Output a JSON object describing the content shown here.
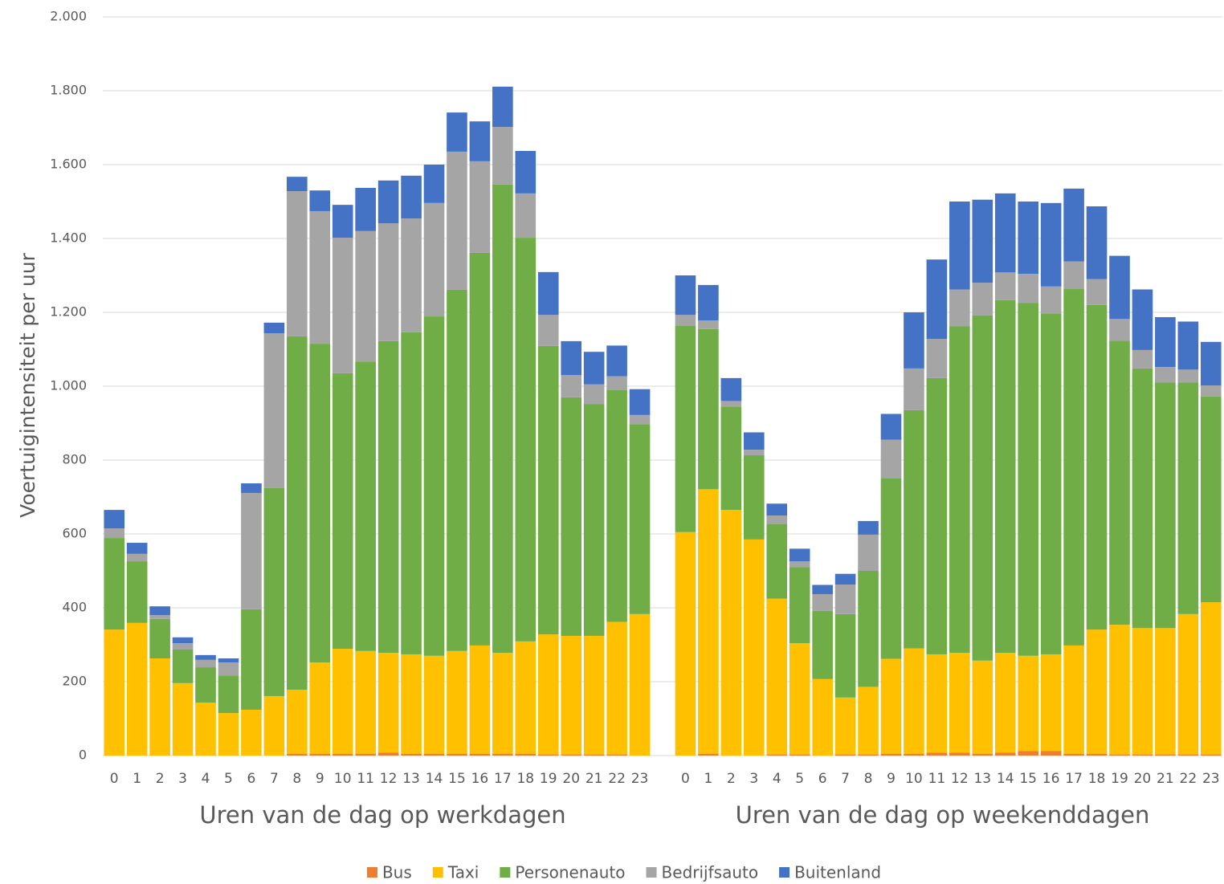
{
  "chart_data": {
    "type": "stacked_bar",
    "ylabel": "Voertuigintensiteit per uur",
    "xlabels": [
      "Uren van de dag op werkdagen",
      "Uren van de dag op weekenddagen"
    ],
    "categories": [
      "0",
      "1",
      "2",
      "3",
      "4",
      "5",
      "6",
      "7",
      "8",
      "9",
      "10",
      "11",
      "12",
      "13",
      "14",
      "15",
      "16",
      "17",
      "18",
      "19",
      "20",
      "21",
      "22",
      "23",
      null,
      "0",
      "1",
      "2",
      "3",
      "4",
      "5",
      "6",
      "7",
      "8",
      "9",
      "10",
      "11",
      "12",
      "13",
      "14",
      "15",
      "16",
      "17",
      "18",
      "19",
      "20",
      "21",
      "22",
      "23"
    ],
    "series": [
      {
        "name": "Bus",
        "color": "#ed7d31",
        "values": [
          0,
          0,
          0,
          0,
          0,
          0,
          0,
          0,
          5,
          5,
          5,
          5,
          8,
          5,
          5,
          5,
          5,
          5,
          5,
          3,
          3,
          3,
          3,
          0,
          null,
          0,
          5,
          0,
          0,
          3,
          3,
          0,
          3,
          3,
          5,
          5,
          8,
          8,
          5,
          8,
          12,
          12,
          5,
          5,
          3,
          3,
          3,
          3,
          3
        ]
      },
      {
        "name": "Taxi",
        "color": "#ffc000",
        "values": [
          341,
          359,
          263,
          196,
          143,
          115,
          124,
          161,
          173,
          247,
          284,
          278,
          270,
          269,
          265,
          278,
          293,
          273,
          304,
          325,
          321,
          321,
          359,
          383,
          null,
          605,
          716,
          665,
          585,
          422,
          301,
          207,
          154,
          183,
          257,
          285,
          266,
          270,
          252,
          270,
          258,
          262,
          293,
          336,
          351,
          342,
          342,
          380,
          412
        ]
      },
      {
        "name": "Personenauto",
        "color": "#70ad47",
        "values": [
          248,
          167,
          107,
          91,
          96,
          102,
          272,
          563,
          957,
          863,
          746,
          784,
          844,
          872,
          919,
          978,
          1063,
          1268,
          1093,
          781,
          646,
          628,
          628,
          514,
          null,
          558,
          434,
          280,
          228,
          202,
          206,
          185,
          226,
          314,
          488,
          645,
          748,
          884,
          935,
          955,
          955,
          923,
          965,
          879,
          769,
          703,
          665,
          627,
          557
        ]
      },
      {
        "name": "Bedrijfsauto",
        "color": "#a5a5a5",
        "values": [
          26,
          20,
          10,
          17,
          20,
          35,
          315,
          419,
          393,
          359,
          367,
          353,
          319,
          308,
          307,
          374,
          248,
          156,
          120,
          84,
          60,
          53,
          37,
          25,
          null,
          30,
          23,
          15,
          15,
          23,
          16,
          45,
          80,
          98,
          105,
          113,
          106,
          100,
          88,
          75,
          79,
          73,
          75,
          70,
          59,
          50,
          42,
          35,
          30
        ]
      },
      {
        "name": "Buitenland",
        "color": "#4472c4",
        "values": [
          50,
          30,
          24,
          16,
          13,
          11,
          26,
          29,
          39,
          56,
          89,
          117,
          116,
          116,
          104,
          106,
          108,
          109,
          115,
          116,
          92,
          88,
          83,
          70,
          null,
          107,
          96,
          62,
          47,
          32,
          34,
          25,
          29,
          37,
          70,
          152,
          215,
          238,
          225,
          214,
          196,
          226,
          197,
          197,
          171,
          164,
          135,
          130,
          118
        ]
      }
    ],
    "ylim": [
      0,
      2000
    ],
    "yticks": [
      0,
      200,
      400,
      600,
      800,
      {
        "value": 1000,
        "label": "1.000"
      },
      {
        "value": 1200,
        "label": "1.200"
      },
      {
        "value": 1400,
        "label": "1.400"
      },
      {
        "value": 1600,
        "label": "1.600"
      },
      {
        "value": 1800,
        "label": "1.800"
      },
      {
        "value": 2000,
        "label": "2.000"
      }
    ],
    "grid": true,
    "legend": "bottom"
  }
}
